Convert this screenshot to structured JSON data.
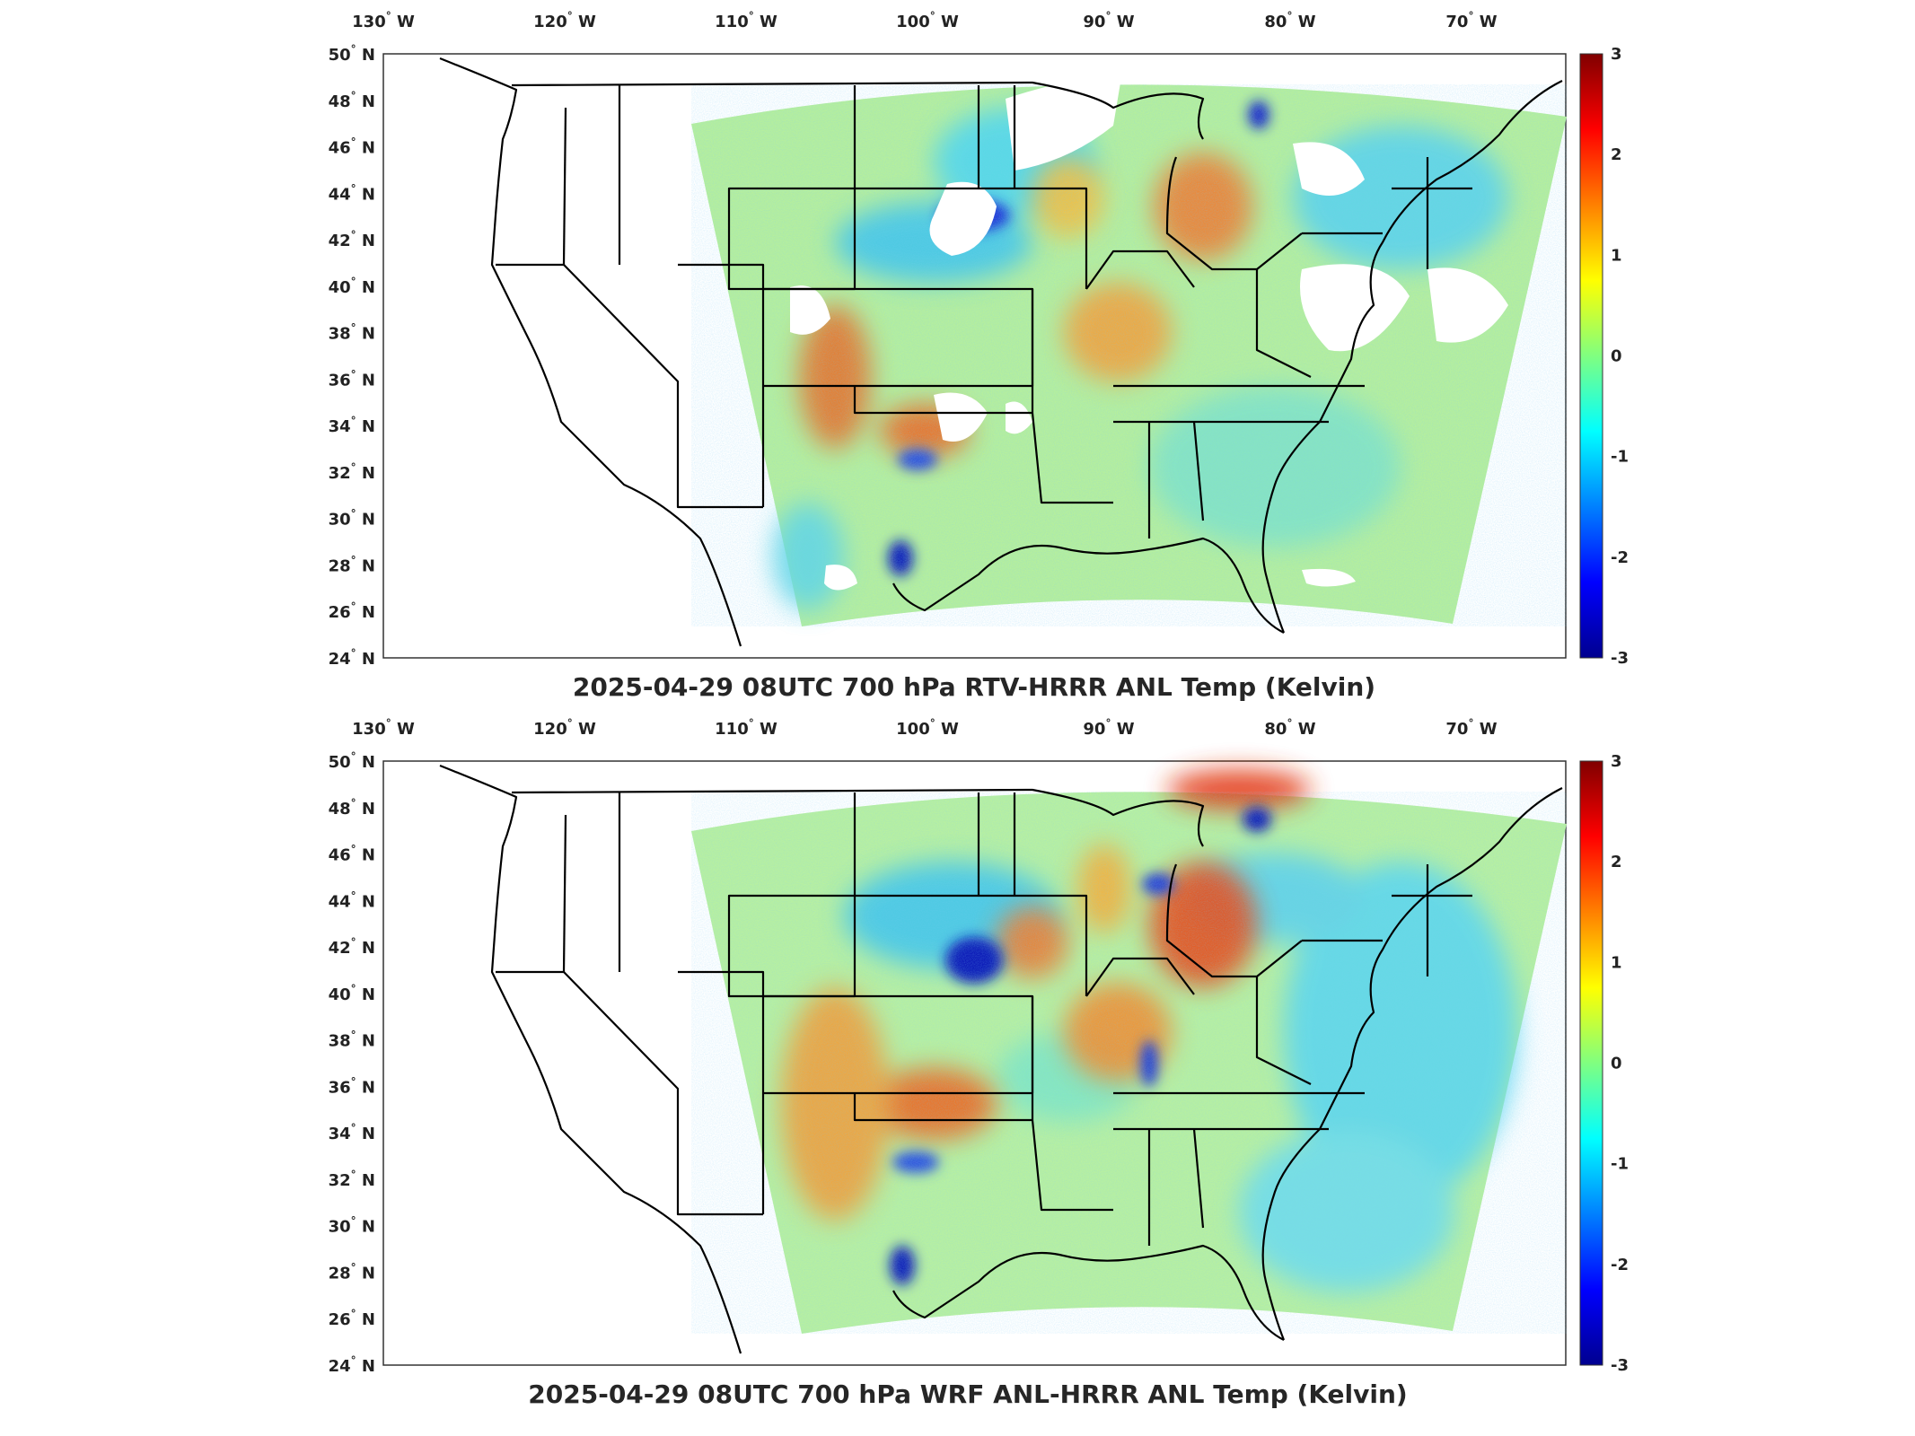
{
  "panels": [
    {
      "title": "2025-04-29 08UTC 700 hPa RTV-HRRR ANL Temp (Kelvin)"
    },
    {
      "title": "2025-04-29 08UTC 700 hPa WRF ANL-HRRR ANL Temp (Kelvin)"
    }
  ],
  "lon_labels": [
    {
      "deg": "130",
      "hemi": "W",
      "value": -130
    },
    {
      "deg": "120",
      "hemi": "W",
      "value": -120
    },
    {
      "deg": "110",
      "hemi": "W",
      "value": -110
    },
    {
      "deg": "100",
      "hemi": "W",
      "value": -100
    },
    {
      "deg": "90",
      "hemi": "W",
      "value": -90
    },
    {
      "deg": "80",
      "hemi": "W",
      "value": -80
    },
    {
      "deg": "70",
      "hemi": "W",
      "value": -70
    }
  ],
  "lat_labels": [
    {
      "deg": "50",
      "hemi": "N",
      "value": 50
    },
    {
      "deg": "48",
      "hemi": "N",
      "value": 48
    },
    {
      "deg": "46",
      "hemi": "N",
      "value": 46
    },
    {
      "deg": "44",
      "hemi": "N",
      "value": 44
    },
    {
      "deg": "42",
      "hemi": "N",
      "value": 42
    },
    {
      "deg": "40",
      "hemi": "N",
      "value": 40
    },
    {
      "deg": "38",
      "hemi": "N",
      "value": 38
    },
    {
      "deg": "36",
      "hemi": "N",
      "value": 36
    },
    {
      "deg": "34",
      "hemi": "N",
      "value": 34
    },
    {
      "deg": "32",
      "hemi": "N",
      "value": 32
    },
    {
      "deg": "30",
      "hemi": "N",
      "value": 30
    },
    {
      "deg": "28",
      "hemi": "N",
      "value": 28
    },
    {
      "deg": "26",
      "hemi": "N",
      "value": 26
    },
    {
      "deg": "24",
      "hemi": "N",
      "value": 24
    }
  ],
  "colorbar": {
    "ticks": [
      "3",
      "2",
      "1",
      "0",
      "-1",
      "-2",
      "-3"
    ],
    "range": [
      -3,
      3
    ],
    "colors": [
      "#00008f",
      "#0000ff",
      "#0080ff",
      "#00ffff",
      "#80ff80",
      "#ffff00",
      "#ff8000",
      "#ff0000",
      "#800000"
    ]
  },
  "map_colors": {
    "field_base": "#b8f0a0",
    "cool": "#4fd8f0",
    "warm": "#f2c43a",
    "hot": "#e8401c",
    "cold": "#1a2ad8",
    "missing": "#ffffff",
    "outline": "#000000"
  }
}
